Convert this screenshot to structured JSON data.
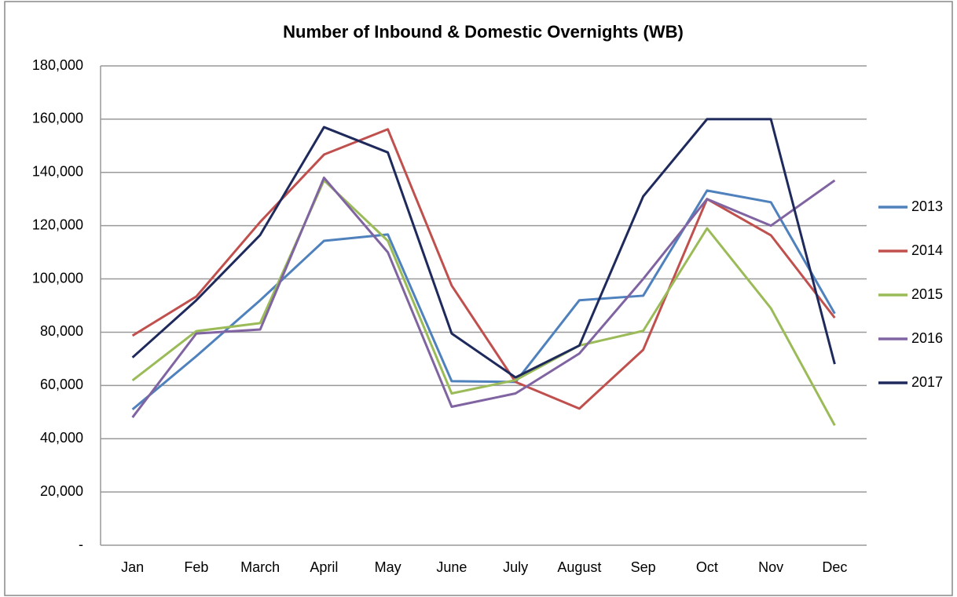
{
  "chart_data": {
    "type": "line",
    "title": "Number of Inbound & Domestic Overnights (WB)",
    "categories": [
      "Jan",
      "Feb",
      "March",
      "April",
      "May",
      "June",
      "July",
      "August",
      "Sep",
      "Oct",
      "Nov",
      "Dec"
    ],
    "series": [
      {
        "name": "2013",
        "color": "#4f81bd",
        "values": [
          51000,
          71000,
          92000,
          114300,
          116700,
          61600,
          61300,
          92000,
          93700,
          133200,
          128800,
          87000
        ]
      },
      {
        "name": "2014",
        "color": "#c0504d",
        "values": [
          78700,
          93400,
          121400,
          146700,
          156200,
          97500,
          61300,
          51300,
          73400,
          130000,
          116400,
          85400
        ]
      },
      {
        "name": "2015",
        "color": "#9bbb59",
        "values": [
          61900,
          80400,
          83400,
          137000,
          114300,
          57000,
          62000,
          75000,
          80500,
          119000,
          89000,
          45000
        ]
      },
      {
        "name": "2016",
        "color": "#8064a2",
        "values": [
          48000,
          79500,
          81000,
          138000,
          110000,
          52000,
          57000,
          72000,
          100000,
          130000,
          120000,
          137000
        ]
      },
      {
        "name": "2017",
        "color": "#1f2a5c",
        "values": [
          70500,
          92000,
          116500,
          157000,
          147500,
          79500,
          63000,
          75000,
          131000,
          160000,
          160000,
          68000
        ]
      }
    ],
    "ylim": [
      0,
      180000
    ],
    "yticks": [
      {
        "value": 0,
        "label": "-"
      },
      {
        "value": 20000,
        "label": "20,000"
      },
      {
        "value": 40000,
        "label": "40,000"
      },
      {
        "value": 60000,
        "label": "60,000"
      },
      {
        "value": 80000,
        "label": "80,000"
      },
      {
        "value": 100000,
        "label": "100,000"
      },
      {
        "value": 120000,
        "label": "120,000"
      },
      {
        "value": 140000,
        "label": "140,000"
      },
      {
        "value": 160000,
        "label": "160,000"
      },
      {
        "value": 180000,
        "label": "180,000"
      }
    ],
    "grid": true,
    "legend": "right"
  }
}
